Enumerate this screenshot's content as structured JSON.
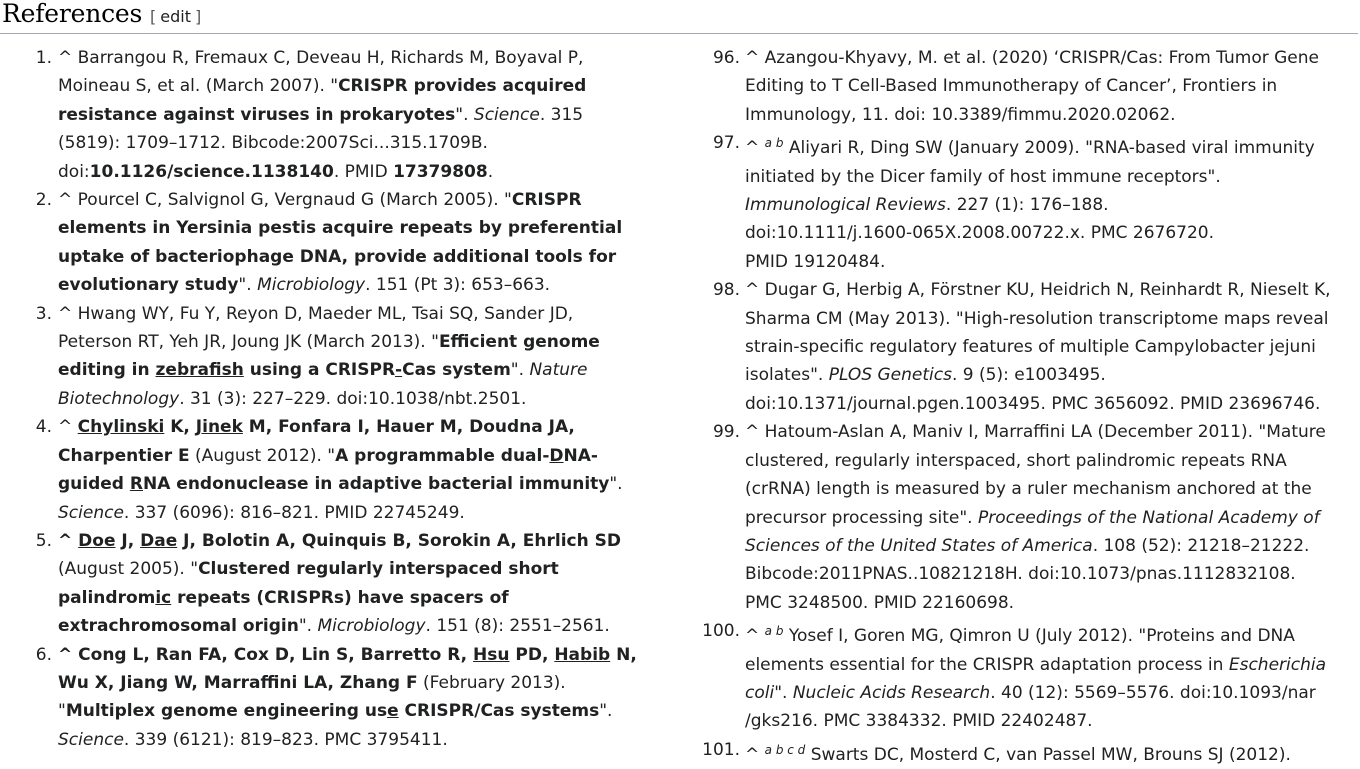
{
  "section": {
    "title": "References",
    "edit_open": "[",
    "edit_label": "edit",
    "edit_close": "]"
  },
  "left_refs": [
    {
      "num": "1.",
      "lines": [
        [
          {
            "t": "^ Barrangou R, Fremaux C, Deveau H, Richards M, Boyaval P,"
          }
        ],
        [
          {
            "t": "Moineau S, et al. (March 2007). \""
          },
          {
            "t": "CRISPR provides acquired",
            "s": "b"
          }
        ],
        [
          {
            "t": "resistance against viruses in prokaryotes",
            "s": "b"
          },
          {
            "t": "\". "
          },
          {
            "t": "Science",
            "s": "i"
          },
          {
            "t": ". 315"
          }
        ],
        [
          {
            "t": "(5819): 1709–1712. Bibcode:2007Sci...315.1709B."
          }
        ],
        [
          {
            "t": "doi:"
          },
          {
            "t": "10.1126/science.1138140",
            "s": "b"
          },
          {
            "t": ". PMID "
          },
          {
            "t": "17379808",
            "s": "b"
          },
          {
            "t": "."
          }
        ]
      ]
    },
    {
      "num": "2.",
      "lines": [
        [
          {
            "t": "^ Pourcel C, Salvignol G, Vergnaud G (March 2005). \""
          },
          {
            "t": "CRISPR",
            "s": "b"
          }
        ],
        [
          {
            "t": "elements in Yersinia pestis acquire repeats by preferential",
            "s": "b"
          }
        ],
        [
          {
            "t": "uptake of bacteriophage DNA, provide additional tools for",
            "s": "b"
          }
        ],
        [
          {
            "t": "evolutionary study",
            "s": "b"
          },
          {
            "t": "\". "
          },
          {
            "t": "Microbiology",
            "s": "i"
          },
          {
            "t": ". 151 (Pt 3): 653–663."
          }
        ]
      ]
    },
    {
      "num": "3.",
      "lines": [
        [
          {
            "t": "^ Hwang WY, Fu Y, Reyon D, Maeder ML, Tsai SQ, Sander JD,"
          }
        ],
        [
          {
            "t": "Peterson RT, Yeh JR, Joung JK (March 2013). \""
          },
          {
            "t": "Efficient genome",
            "s": "b"
          }
        ],
        [
          {
            "t": "editing in ",
            "s": "b"
          },
          {
            "t": "zebrafish",
            "s": "bu"
          },
          {
            "t": " using a CRISPR",
            "s": "b"
          },
          {
            "t": "-",
            "s": "bu"
          },
          {
            "t": "Cas system",
            "s": "b"
          },
          {
            "t": "\". "
          },
          {
            "t": "Nature",
            "s": "i"
          }
        ],
        [
          {
            "t": "Biotechnology",
            "s": "i"
          },
          {
            "t": ". 31 (3): 227–229. doi:10.1038/nbt.2501."
          }
        ]
      ]
    },
    {
      "num": "4.",
      "lines": [
        [
          {
            "t": "^ "
          },
          {
            "t": "Chylinski",
            "s": "bu"
          },
          {
            "t": " K, ",
            "s": "b"
          },
          {
            "t": "Jinek",
            "s": "bu"
          },
          {
            "t": " M, Fonfara I, Hauer M, Doudna JA,",
            "s": "b"
          }
        ],
        [
          {
            "t": "Charpentier E",
            "s": "b"
          },
          {
            "t": " (August 2012). \""
          },
          {
            "t": "A programmable dual-",
            "s": "b"
          },
          {
            "t": "D",
            "s": "bu"
          },
          {
            "t": "NA-",
            "s": "b"
          }
        ],
        [
          {
            "t": "guided ",
            "s": "b"
          },
          {
            "t": "R",
            "s": "bu"
          },
          {
            "t": "NA endonuclease in adaptive bacterial immunity",
            "s": "b"
          },
          {
            "t": "\"."
          }
        ],
        [
          {
            "t": "Science",
            "s": "i"
          },
          {
            "t": ". 337 (6096): 816–821. PMID 22745249."
          }
        ]
      ]
    },
    {
      "num": "5.",
      "lines": [
        [
          {
            "t": "^ ",
            "s": "b"
          },
          {
            "t": "Doe",
            "s": "bu"
          },
          {
            "t": " J, ",
            "s": "b"
          },
          {
            "t": "Dae",
            "s": "bu"
          },
          {
            "t": " J, Bolotin A, Quinquis B, Sorokin A, Ehrlich SD",
            "s": "b"
          }
        ],
        [
          {
            "t": "(August 2005). \""
          },
          {
            "t": "Clustered regularly interspaced short",
            "s": "b"
          }
        ],
        [
          {
            "t": "palindrom",
            "s": "b"
          },
          {
            "t": "ic",
            "s": "bu"
          },
          {
            "t": " repeats (CRISPRs) have spacers of",
            "s": "b"
          }
        ],
        [
          {
            "t": "extrachromosomal origin",
            "s": "b"
          },
          {
            "t": "\". "
          },
          {
            "t": "Microbiology",
            "s": "i"
          },
          {
            "t": ". 151 (8): 2551–2561."
          }
        ]
      ]
    },
    {
      "num": "6.",
      "lines": [
        [
          {
            "t": "^ Cong L, Ran FA, Cox D, Lin S, Barretto R, ",
            "s": "b"
          },
          {
            "t": "Hsu",
            "s": "bu"
          },
          {
            "t": " PD, ",
            "s": "b"
          },
          {
            "t": "Habib",
            "s": "bu"
          },
          {
            "t": " N,",
            "s": "b"
          }
        ],
        [
          {
            "t": "Wu X, Jiang W, Marraffini LA, Zhang F",
            "s": "b"
          },
          {
            "t": " (February 2013)."
          }
        ],
        [
          {
            "t": "\""
          },
          {
            "t": "Multiplex genome engineering us",
            "s": "b"
          },
          {
            "t": "e",
            "s": "bu"
          },
          {
            "t": " CRISPR/Cas systems",
            "s": "b"
          },
          {
            "t": "\"."
          }
        ],
        [
          {
            "t": "Science",
            "s": "i"
          },
          {
            "t": ". 339 (6121): 819–823. PMC 3795411."
          }
        ]
      ]
    }
  ],
  "right_refs": [
    {
      "num": "96.",
      "lines": [
        [
          {
            "t": "^ Azangou-Khyavy, M. et al. (2020) ‘CRISPR/Cas: From Tumor Gene"
          }
        ],
        [
          {
            "t": "Editing to T Cell-Based Immunotherapy of Cancer’, Frontiers in"
          }
        ],
        [
          {
            "t": "Immunology, 11. doi: 10.3389/fimmu.2020.02062."
          }
        ]
      ]
    },
    {
      "num": "97.",
      "lines": [
        [
          {
            "t": "^ "
          },
          {
            "t": "a b",
            "s": "sup"
          },
          {
            "t": " Aliyari R, Ding SW (January 2009). \"RNA-based viral immunity"
          }
        ],
        [
          {
            "t": "initiated by the Dicer family of host immune receptors\"."
          }
        ],
        [
          {
            "t": "Immunological Reviews",
            "s": "i"
          },
          {
            "t": ". 227 (1): 176–188."
          }
        ],
        [
          {
            "t": "doi:10.1111/j.1600-065X.2008.00722.x. PMC 2676720."
          }
        ],
        [
          {
            "t": "PMID 19120484."
          }
        ]
      ]
    },
    {
      "num": "98.",
      "lines": [
        [
          {
            "t": "^ Dugar G, Herbig A, Förstner KU, Heidrich N, Reinhardt R, Nieselt K,"
          }
        ],
        [
          {
            "t": "Sharma CM (May 2013). \"High-resolution transcriptome maps reveal"
          }
        ],
        [
          {
            "t": "strain-specific regulatory features of multiple Campylobacter jejuni"
          }
        ],
        [
          {
            "t": "isolates\". "
          },
          {
            "t": "PLOS Genetics",
            "s": "i"
          },
          {
            "t": ". 9 (5): e1003495."
          }
        ],
        [
          {
            "t": "doi:10.1371/journal.pgen.1003495. PMC 3656092. PMID 23696746."
          }
        ]
      ]
    },
    {
      "num": "99.",
      "lines": [
        [
          {
            "t": "^ Hatoum-Aslan A, Maniv I, Marraffini LA (December 2011). \"Mature"
          }
        ],
        [
          {
            "t": "clustered, regularly interspaced, short palindromic repeats RNA"
          }
        ],
        [
          {
            "t": "(crRNA) length is measured by a ruler mechanism anchored at the"
          }
        ],
        [
          {
            "t": "precursor processing site\". "
          },
          {
            "t": "Proceedings of the National Academy of",
            "s": "i"
          }
        ],
        [
          {
            "t": "Sciences of the United States of America",
            "s": "i"
          },
          {
            "t": ". 108 (52): 21218–21222."
          }
        ],
        [
          {
            "t": "Bibcode:2011PNAS..10821218H. doi:10.1073/pnas.1112832108."
          }
        ],
        [
          {
            "t": "PMC 3248500. PMID 22160698."
          }
        ]
      ]
    },
    {
      "num": "100.",
      "lines": [
        [
          {
            "t": "^ "
          },
          {
            "t": "a b",
            "s": "sup"
          },
          {
            "t": " Yosef I, Goren MG, Qimron U (July 2012). \"Proteins and DNA"
          }
        ],
        [
          {
            "t": "elements essential for the CRISPR adaptation process in "
          },
          {
            "t": "Escherichia",
            "s": "i"
          }
        ],
        [
          {
            "t": "coli",
            "s": "i"
          },
          {
            "t": "\". "
          },
          {
            "t": "Nucleic Acids Research",
            "s": "i"
          },
          {
            "t": ". 40 (12): 5569–5576. doi:10.1093/nar"
          }
        ],
        [
          {
            "t": "/gks216. PMC 3384332. PMID 22402487."
          }
        ]
      ]
    },
    {
      "num": "101.",
      "lines": [
        [
          {
            "t": "^ "
          },
          {
            "t": "a b c d",
            "s": "sup"
          },
          {
            "t": " Swarts DC, Mosterd C, van Passel MW, Brouns SJ (2012)."
          }
        ]
      ]
    }
  ]
}
